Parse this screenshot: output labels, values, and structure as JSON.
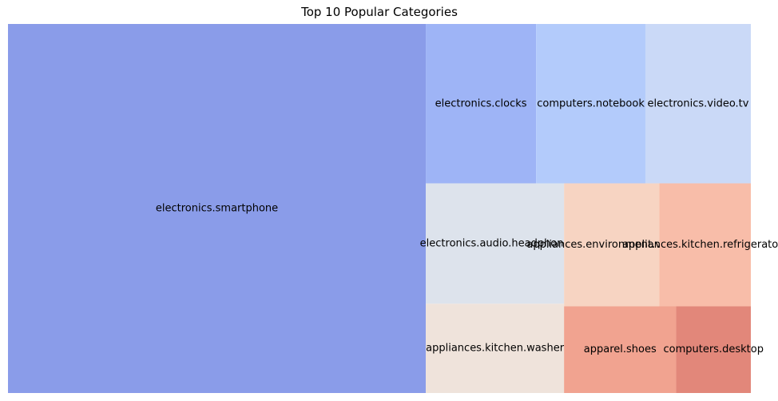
{
  "chart_data": {
    "type": "treemap",
    "title": "Top 10 Popular Categories",
    "xlabel": "",
    "ylabel": "",
    "grid": false,
    "legend": "none",
    "categories": [
      "electronics.smartphone",
      "electronics.clocks",
      "computers.notebook",
      "electronics.video.tv",
      "electronics.audio.headphone",
      "appliances.kitchen.washer",
      "appliances.environment.vacuum",
      "appliances.kitchen.refrigerators",
      "apparel.shoes",
      "computers.desktop"
    ],
    "values": [
      100,
      11.4,
      11.3,
      10.9,
      10.8,
      8.0,
      7.6,
      7.3,
      6.3,
      4.2
    ],
    "colors": [
      "#8a9ce9",
      "#9eb4f6",
      "#b3cbfb",
      "#cad9f7",
      "#dde3ec",
      "#efe3db",
      "#f7d4c2",
      "#f8bda9",
      "#f1a390",
      "#e2877a"
    ]
  }
}
